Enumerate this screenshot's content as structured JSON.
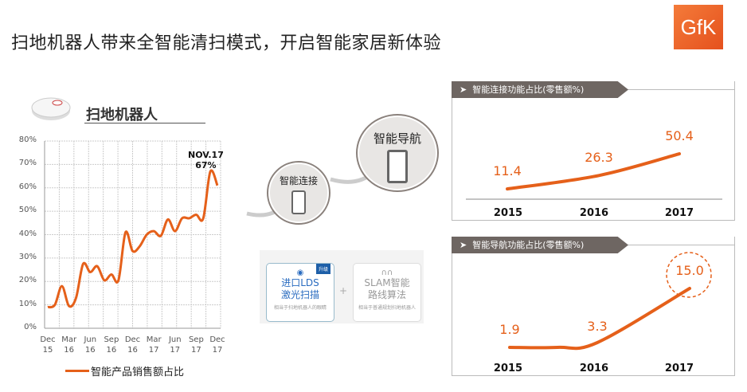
{
  "title": "扫地机器人带来全智能清扫模式，开启智能家居新体验",
  "logo": "GfK",
  "robot_title": "扫地机器人",
  "colors": {
    "accent": "#e5601a",
    "header": "#6e6662",
    "logo": "#e8561f"
  },
  "chart_data": [
    {
      "type": "line",
      "title": "扫地机器人",
      "legend": "智能产品销售额占比",
      "legend_position": "bottom",
      "ylim": [
        0,
        80
      ],
      "yticks": [
        "0%",
        "10%",
        "20%",
        "30%",
        "40%",
        "50%",
        "60%",
        "70%",
        "80%"
      ],
      "xtick_labels": [
        [
          "Dec",
          "15"
        ],
        [
          "Mar",
          "16"
        ],
        [
          "Jun",
          "16"
        ],
        [
          "Sep",
          "16"
        ],
        [
          "Dec",
          "16"
        ],
        [
          "Mar",
          "17"
        ],
        [
          "Jun",
          "17"
        ],
        [
          "Sep",
          "17"
        ],
        [
          "Dec",
          "17"
        ]
      ],
      "x": [
        "Dec15",
        "Jan16",
        "Feb16",
        "Mar16",
        "Apr16",
        "May16",
        "Jun16",
        "Jul16",
        "Aug16",
        "Sep16",
        "Oct16",
        "Nov16",
        "Dec16",
        "Jan17",
        "Feb17",
        "Mar17",
        "Apr17",
        "May17",
        "Jun17",
        "Jul17",
        "Aug17",
        "Sep17",
        "Oct17",
        "Nov17",
        "Dec17"
      ],
      "values": [
        9,
        10,
        18,
        9.5,
        13,
        27.5,
        24,
        26.5,
        20.5,
        23,
        20.5,
        41,
        33,
        35,
        40,
        41.5,
        39.5,
        46.5,
        41.5,
        47,
        47,
        48.5,
        47,
        67,
        61
      ],
      "annotation": {
        "label": "NOV.17",
        "value": "67%"
      },
      "grid": true
    },
    {
      "type": "line",
      "title": "智能连接功能占比(零售额%)",
      "categories": [
        "2015",
        "2016",
        "2017"
      ],
      "values": [
        11.4,
        26.3,
        50.4
      ],
      "labels": [
        "11.4",
        "26.3",
        "50.4"
      ]
    },
    {
      "type": "line",
      "title": "智能导航功能占比(零售额%)",
      "categories": [
        "2015",
        "2016",
        "2017"
      ],
      "values": [
        1.9,
        3.3,
        15.0
      ],
      "labels": [
        "1.9",
        "3.3",
        "15.0"
      ],
      "highlight": "15.0"
    }
  ],
  "steps": {
    "connect": "智能连接",
    "navigate": "智能导航"
  },
  "features": {
    "lds": {
      "badge": "升级",
      "line1": "进口LDS",
      "line2": "激光扫描",
      "note": "相当于扫地机器人的眼睛"
    },
    "plus": "+",
    "slam": {
      "line1": "SLAM智能",
      "line2": "路线算法",
      "note": "相当于普通规划扫地机器人"
    }
  }
}
